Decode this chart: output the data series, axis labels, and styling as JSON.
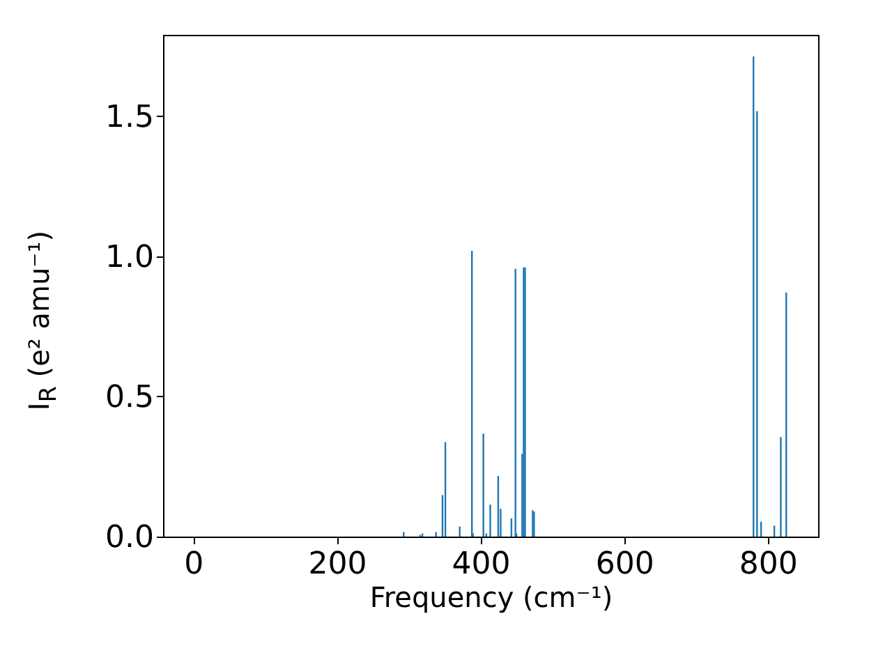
{
  "chart_data": {
    "type": "bar",
    "xlabel": "Frequency (cm⁻¹)",
    "ylabel": "I$_{R}$ (e² amu⁻¹)",
    "x": [
      293,
      316,
      319,
      338,
      347,
      351,
      371,
      388,
      389.5,
      404,
      408,
      413.5,
      424.6,
      428,
      443,
      448.6,
      450,
      458,
      460,
      462,
      472.6,
      474.5,
      780,
      785,
      790.6,
      809,
      818,
      825.6
    ],
    "series": [
      {
        "color": "#1f77b4",
        "values": [
          0.016,
          0.006,
          0.011,
          0.016,
          0.148,
          0.337,
          0.036,
          1.019,
          0.011,
          0.367,
          0.011,
          0.114,
          0.216,
          0.099,
          0.065,
          0.955,
          0.011,
          0.295,
          0.96,
          0.96,
          0.094,
          0.089,
          1.713,
          1.518,
          0.053,
          0.039,
          0.355,
          0.871
        ]
      }
    ],
    "xlim": [
      -42,
      870
    ],
    "ylim": [
      0,
      1.79
    ],
    "xticks": [
      0,
      200,
      400,
      600,
      800
    ],
    "yticks": [
      {
        "value": 0,
        "label": "0.0"
      },
      {
        "value": 0.5,
        "label": "0.5"
      },
      {
        "value": 1,
        "label": "1.0"
      },
      {
        "value": 1.5,
        "label": "1.5"
      }
    ],
    "grid": false
  }
}
